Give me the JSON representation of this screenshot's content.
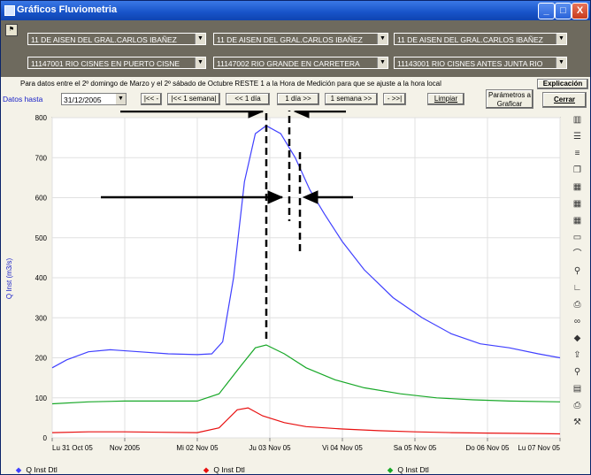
{
  "window": {
    "title": "Gráficos  Fluviometria",
    "buttons": {
      "minimize": "_",
      "maximize": "□",
      "close": "X"
    }
  },
  "selectors": {
    "regions": [
      {
        "label": "11 DE AISEN DEL GRAL.CARLOS IBAÑEZ",
        "color": "#1a22c8"
      },
      {
        "label": "11 DE AISEN DEL GRAL.CARLOS IBAÑEZ",
        "color": "#e81010"
      },
      {
        "label": "11 DE AISEN DEL GRAL.CARLOS IBAÑEZ",
        "color": "#18a828"
      }
    ],
    "stations": [
      {
        "label": "11147001 RIO CISNES EN PUERTO CISNE",
        "color": "#1a22c8"
      },
      {
        "label": "11147002 RIO GRANDE EN CARRETERA",
        "color": "#e81010"
      },
      {
        "label": "11143001 RIO CISNES ANTES JUNTA RIO",
        "color": "#18a828"
      }
    ]
  },
  "notice": {
    "text": "Para datos entre el 2º domingo de Marzo y el 2º sábado de Octubre RESTE 1 a la Hora de Medición para que se ajuste a la hora local",
    "button": "Explicación"
  },
  "toolbar": {
    "datos_hasta_label": "Datos hasta",
    "date_value": "31/12/2005",
    "nav": [
      "|<< -",
      "|<< 1 semana|",
      "<< 1 día",
      "1 día >>",
      "1 semana >>",
      "- >>|"
    ],
    "limpiar": "Limpiar",
    "parametros": "Parámetros a Graficar",
    "cerrar": "Cerrar"
  },
  "chart_data": {
    "type": "line",
    "ylabel": "Q Inst (m3/s)",
    "ylim": [
      0,
      800
    ],
    "yticks": [
      0,
      100,
      200,
      300,
      400,
      500,
      600,
      700,
      800
    ],
    "xlim": [
      0,
      7
    ],
    "xticks": [
      {
        "x": 0,
        "label": "Lu 31 Oct 05"
      },
      {
        "x": 1,
        "label": "Nov 2005"
      },
      {
        "x": 2,
        "label": "Mi 02 Nov 05"
      },
      {
        "x": 3,
        "label": "Ju 03 Nov 05"
      },
      {
        "x": 4,
        "label": "Vi 04 Nov 05"
      },
      {
        "x": 5,
        "label": "Sa 05 Nov 05"
      },
      {
        "x": 6,
        "label": "Do 06 Nov 05"
      },
      {
        "x": 7,
        "label": "Lu 07 Nov 05"
      }
    ],
    "grid": true,
    "legend_position": "bottom",
    "series": [
      {
        "name": "Q Inst Dtl",
        "color": "#4040ff",
        "marker": "◆",
        "points": [
          [
            0,
            175
          ],
          [
            0.2,
            195
          ],
          [
            0.5,
            215
          ],
          [
            0.8,
            220
          ],
          [
            1.2,
            215
          ],
          [
            1.6,
            210
          ],
          [
            2.0,
            208
          ],
          [
            2.2,
            210
          ],
          [
            2.35,
            240
          ],
          [
            2.5,
            400
          ],
          [
            2.65,
            640
          ],
          [
            2.8,
            760
          ],
          [
            2.95,
            780
          ],
          [
            3.15,
            760
          ],
          [
            3.35,
            700
          ],
          [
            3.55,
            620
          ],
          [
            3.75,
            560
          ],
          [
            4.0,
            490
          ],
          [
            4.3,
            420
          ],
          [
            4.7,
            350
          ],
          [
            5.1,
            300
          ],
          [
            5.5,
            260
          ],
          [
            5.9,
            235
          ],
          [
            6.3,
            225
          ],
          [
            6.7,
            210
          ],
          [
            7.0,
            200
          ]
        ]
      },
      {
        "name": "Q Inst Dtl",
        "color": "#e81010",
        "marker": "◆",
        "points": [
          [
            0,
            13
          ],
          [
            0.5,
            15
          ],
          [
            1.0,
            15
          ],
          [
            1.5,
            14
          ],
          [
            2.0,
            13
          ],
          [
            2.3,
            25
          ],
          [
            2.55,
            70
          ],
          [
            2.7,
            75
          ],
          [
            2.9,
            55
          ],
          [
            3.2,
            38
          ],
          [
            3.5,
            28
          ],
          [
            4.0,
            22
          ],
          [
            4.5,
            18
          ],
          [
            5.0,
            15
          ],
          [
            5.5,
            13
          ],
          [
            6.0,
            12
          ],
          [
            6.5,
            11
          ],
          [
            7.0,
            10
          ]
        ]
      },
      {
        "name": "Q Inst Dtl",
        "color": "#18a828",
        "marker": "◆",
        "points": [
          [
            0,
            85
          ],
          [
            0.5,
            90
          ],
          [
            1.0,
            92
          ],
          [
            1.5,
            92
          ],
          [
            2.0,
            92
          ],
          [
            2.3,
            110
          ],
          [
            2.6,
            180
          ],
          [
            2.8,
            225
          ],
          [
            2.95,
            232
          ],
          [
            3.2,
            210
          ],
          [
            3.5,
            175
          ],
          [
            3.9,
            145
          ],
          [
            4.3,
            125
          ],
          [
            4.8,
            110
          ],
          [
            5.3,
            100
          ],
          [
            5.8,
            95
          ],
          [
            6.3,
            92
          ],
          [
            7.0,
            90
          ]
        ]
      }
    ]
  },
  "right_tools": [
    "bars-icon",
    "lines-icon",
    "stack-icon",
    "copy-icon",
    "grid-icon",
    "grid2-icon",
    "grid3-icon",
    "box-icon",
    "curve-icon",
    "zoom-icon",
    "axes-icon",
    "print-icon",
    "binoculars-icon",
    "diamond-icon",
    "export-icon",
    "zoom2-icon",
    "preview-icon",
    "printer-icon",
    "hammer-icon"
  ]
}
